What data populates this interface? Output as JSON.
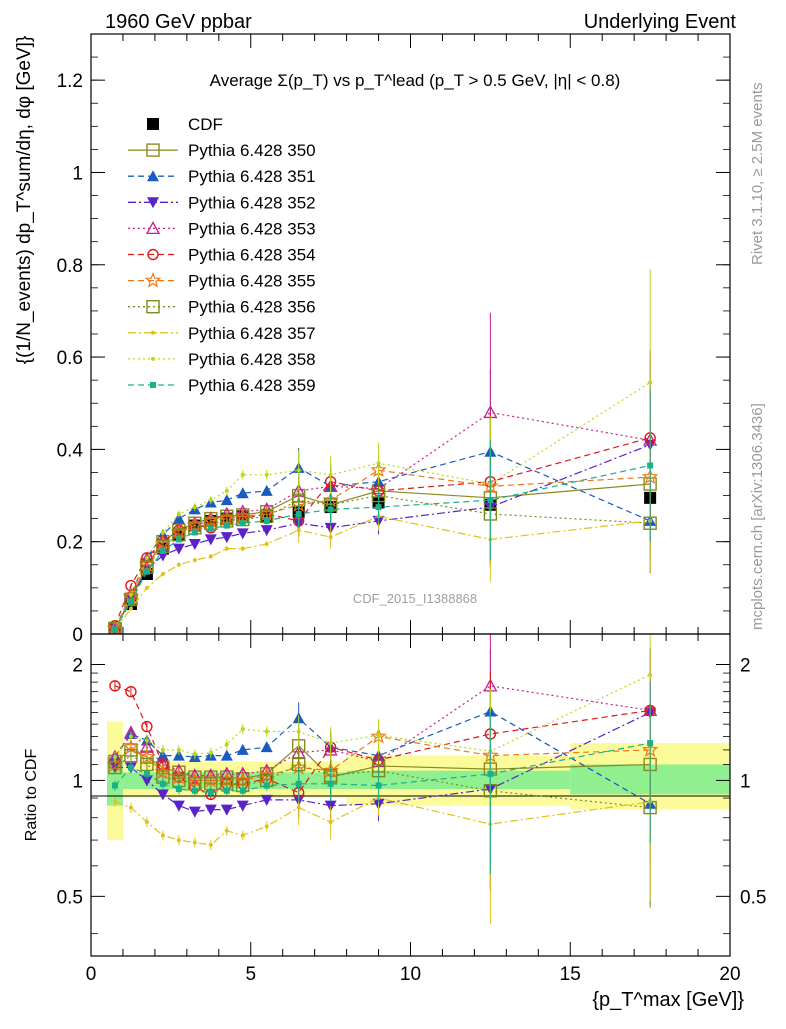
{
  "header": {
    "left": "1960 GeV ppbar",
    "right": "Underlying Event",
    "side_top": "Rivet 3.1.10, ≥ 2.5M events",
    "side_bottom": "mcplots.cern.ch [arXiv:1306.3436]",
    "watermark": "CDF_2015_I1388868"
  },
  "chart_data": [
    {
      "type": "scatter",
      "title": "Average Σ(p_T) vs p_T^lead (p_T > 0.5 GeV, |η| < 0.8)",
      "ylabel": "{(1/N_events) dp_T^sum/dη, dφ [GeV]}",
      "xlabel": "",
      "xlim": [
        0,
        20
      ],
      "ylim": [
        0,
        1.3
      ],
      "xticks": [
        "0",
        "5",
        "10",
        "15",
        "20"
      ],
      "yticks": [
        "0",
        "0.2",
        "0.4",
        "0.6",
        "0.8",
        "1",
        "1.2"
      ],
      "legend_position": "top-left",
      "x": [
        0.75,
        1.25,
        1.75,
        2.25,
        2.75,
        3.25,
        3.75,
        4.25,
        4.75,
        5.5,
        6.5,
        7.5,
        9.0,
        12.5,
        17.5
      ],
      "series": [
        {
          "name": "CDF",
          "color": "#000000",
          "marker": "square-filled",
          "line": "none",
          "values": [
            0.01,
            0.065,
            0.13,
            0.185,
            0.215,
            0.235,
            0.245,
            0.25,
            0.255,
            0.255,
            0.265,
            0.275,
            0.285,
            0.28,
            0.295
          ]
        },
        {
          "name": "Pythia 6.428 350",
          "color": "#8a8a1f",
          "marker": "square-open",
          "line": "solid",
          "values": [
            0.012,
            0.075,
            0.15,
            0.2,
            0.225,
            0.24,
            0.25,
            0.255,
            0.258,
            0.265,
            0.3,
            0.28,
            0.31,
            0.295,
            0.325
          ]
        },
        {
          "name": "Pythia 6.428 351",
          "color": "#1a5bbf",
          "marker": "triangle-up",
          "line": "dashed",
          "values": [
            0.012,
            0.085,
            0.165,
            0.215,
            0.25,
            0.27,
            0.285,
            0.29,
            0.305,
            0.31,
            0.36,
            0.32,
            0.33,
            0.395,
            0.245
          ]
        },
        {
          "name": "Pythia 6.428 352",
          "color": "#5a22c8",
          "marker": "triangle-down",
          "line": "dashdot",
          "values": [
            0.012,
            0.075,
            0.14,
            0.17,
            0.185,
            0.195,
            0.205,
            0.21,
            0.218,
            0.225,
            0.24,
            0.23,
            0.245,
            0.275,
            0.41
          ]
        },
        {
          "name": "Pythia 6.428 353",
          "color": "#c81f90",
          "marker": "triangle-open",
          "line": "dotted",
          "values": [
            0.012,
            0.085,
            0.16,
            0.2,
            0.225,
            0.24,
            0.25,
            0.26,
            0.265,
            0.27,
            0.31,
            0.32,
            0.315,
            0.48,
            0.42
          ]
        },
        {
          "name": "Pythia 6.428 354",
          "color": "#e01818",
          "marker": "circle-open",
          "line": "dashed",
          "values": [
            0.018,
            0.105,
            0.165,
            0.2,
            0.225,
            0.235,
            0.23,
            0.245,
            0.25,
            0.26,
            0.245,
            0.33,
            0.31,
            0.33,
            0.425
          ]
        },
        {
          "name": "Pythia 6.428 355",
          "color": "#f07818",
          "marker": "star-open",
          "line": "dashed",
          "values": [
            0.012,
            0.08,
            0.15,
            0.195,
            0.22,
            0.235,
            0.245,
            0.25,
            0.255,
            0.26,
            0.28,
            0.29,
            0.355,
            0.32,
            0.34
          ]
        },
        {
          "name": "Pythia 6.428 356",
          "color": "#7f8a1a",
          "marker": "square-open",
          "line": "dotted",
          "values": [
            0.012,
            0.075,
            0.145,
            0.19,
            0.215,
            0.23,
            0.24,
            0.245,
            0.248,
            0.255,
            0.29,
            0.28,
            0.3,
            0.26,
            0.24
          ]
        },
        {
          "name": "Pythia 6.428 357",
          "color": "#e0c21a",
          "marker": "small-dot",
          "line": "dashdot",
          "values": [
            0.009,
            0.055,
            0.1,
            0.13,
            0.15,
            0.16,
            0.168,
            0.185,
            0.185,
            0.195,
            0.225,
            0.21,
            0.255,
            0.205,
            0.245
          ]
        },
        {
          "name": "Pythia 6.428 358",
          "color": "#b8d81a",
          "marker": "small-dot",
          "line": "dotted",
          "values": [
            0.012,
            0.085,
            0.165,
            0.22,
            0.26,
            0.275,
            0.29,
            0.31,
            0.345,
            0.345,
            0.355,
            0.345,
            0.37,
            0.325,
            0.545
          ]
        },
        {
          "name": "Pythia 6.428 359",
          "color": "#1ab08a",
          "marker": "small-square",
          "line": "dashed",
          "values": [
            0.01,
            0.07,
            0.135,
            0.18,
            0.205,
            0.22,
            0.228,
            0.235,
            0.24,
            0.245,
            0.26,
            0.27,
            0.275,
            0.29,
            0.365
          ]
        }
      ]
    },
    {
      "type": "scatter",
      "title": "",
      "ylabel": "Ratio to CDF",
      "xlabel": "{p_T^max [GeV]}",
      "xlim": [
        0,
        20
      ],
      "ylim": [
        0.35,
        2.4
      ],
      "yscale": "log",
      "xticks": [
        "0",
        "5",
        "10",
        "15",
        "20"
      ],
      "yticks": [
        "0.5",
        "1",
        "2"
      ],
      "reference_line": 1,
      "uncertainty_bands": {
        "stat": {
          "color": "#90f090",
          "bins": [
            [
              0.5,
              1.0,
              0.86,
              1.15
            ],
            [
              1.0,
              8.0,
              0.95,
              1.05
            ],
            [
              8.0,
              15.0,
              0.95,
              1.06
            ],
            [
              15.0,
              20.0,
              0.92,
              1.1
            ]
          ]
        },
        "total": {
          "color": "#fbfb9a",
          "bins": [
            [
              0.5,
              1.0,
              0.7,
              1.42
            ],
            [
              1.0,
              8.0,
              0.9,
              1.12
            ],
            [
              8.0,
              15.0,
              0.86,
              1.16
            ],
            [
              15.0,
              20.0,
              0.84,
              1.25
            ]
          ]
        }
      },
      "x": [
        0.75,
        1.25,
        1.75,
        2.25,
        2.75,
        3.25,
        3.75,
        4.25,
        4.75,
        5.5,
        6.5,
        7.5,
        9.0,
        12.5,
        17.5
      ],
      "series": [
        {
          "name": "Pythia 6.428 350",
          "values": [
            1.12,
            1.2,
            1.15,
            1.08,
            1.05,
            1.02,
            1.02,
            1.02,
            1.01,
            1.04,
            1.23,
            1.02,
            1.09,
            1.07,
            1.1
          ]
        },
        {
          "name": "Pythia 6.428 351",
          "values": [
            1.15,
            1.32,
            1.27,
            1.16,
            1.16,
            1.15,
            1.16,
            1.16,
            1.2,
            1.22,
            1.45,
            1.22,
            1.16,
            1.51,
            0.87
          ]
        },
        {
          "name": "Pythia 6.428 352",
          "values": [
            1.08,
            1.08,
            1.0,
            0.92,
            0.86,
            0.83,
            0.84,
            0.84,
            0.86,
            0.89,
            0.89,
            0.86,
            0.87,
            0.95,
            1.5
          ]
        },
        {
          "name": "Pythia 6.428 353",
          "values": [
            1.15,
            1.33,
            1.22,
            1.1,
            1.06,
            1.03,
            1.03,
            1.04,
            1.04,
            1.06,
            1.18,
            1.2,
            1.12,
            1.76,
            1.52
          ]
        },
        {
          "name": "Pythia 6.428 354",
          "values": [
            1.76,
            1.7,
            1.38,
            1.1,
            1.02,
            0.96,
            0.92,
            0.98,
            0.98,
            1.01,
            0.93,
            1.22,
            1.13,
            1.32,
            1.52
          ]
        },
        {
          "name": "Pythia 6.428 355",
          "values": [
            1.1,
            1.22,
            1.15,
            1.05,
            1.02,
            1.0,
            1.0,
            1.0,
            1.0,
            1.03,
            1.08,
            1.06,
            1.3,
            1.16,
            1.2
          ]
        },
        {
          "name": "Pythia 6.428 356",
          "values": [
            1.08,
            1.16,
            1.1,
            1.02,
            1.0,
            0.98,
            0.98,
            0.98,
            0.97,
            1.0,
            1.1,
            1.03,
            1.06,
            0.94,
            0.85
          ]
        },
        {
          "name": "Pythia 6.428 357",
          "values": [
            0.88,
            0.85,
            0.78,
            0.72,
            0.7,
            0.69,
            0.68,
            0.74,
            0.72,
            0.76,
            0.85,
            0.78,
            0.9,
            0.77,
            0.88
          ]
        },
        {
          "name": "Pythia 6.428 358",
          "values": [
            1.15,
            1.3,
            1.27,
            1.2,
            1.2,
            1.17,
            1.18,
            1.24,
            1.36,
            1.34,
            1.34,
            1.25,
            1.31,
            1.19,
            1.88
          ]
        },
        {
          "name": "Pythia 6.428 359",
          "values": [
            0.97,
            1.08,
            1.04,
            0.98,
            0.95,
            0.94,
            0.93,
            0.94,
            0.94,
            0.97,
            0.98,
            0.98,
            0.97,
            1.04,
            1.25
          ]
        }
      ]
    }
  ]
}
